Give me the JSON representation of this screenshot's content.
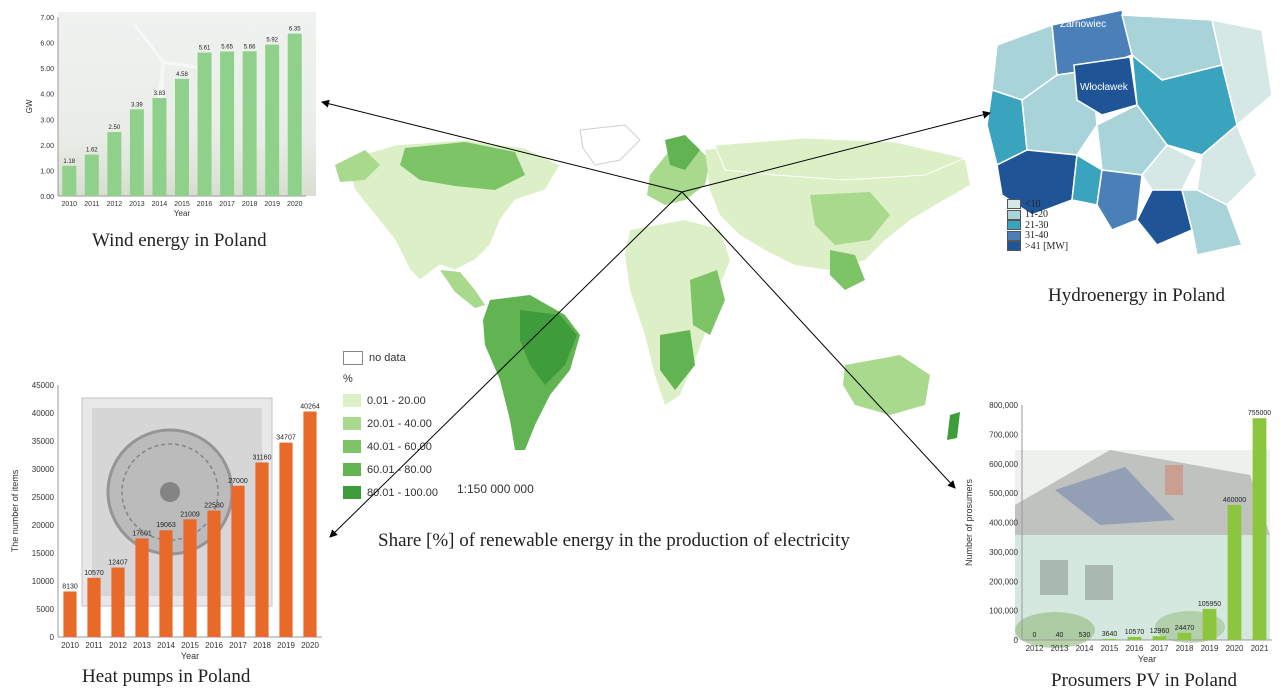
{
  "center": {
    "caption": "Share [%] of renewable energy in the production of electricity",
    "scale": "1:150 000 000",
    "legend": {
      "nodata": "no data",
      "unit": "%",
      "items": [
        {
          "label": "0.01 - 20.00",
          "color": "#dcefc7"
        },
        {
          "label": "20.01 - 40.00",
          "color": "#a9d98d"
        },
        {
          "label": "40.01 - 60.00",
          "color": "#7cc466"
        },
        {
          "label": "60.01 - 80.00",
          "color": "#62b351"
        },
        {
          "label": "80.01 - 100.00",
          "color": "#3e9c3a"
        }
      ]
    }
  },
  "wind": {
    "caption": "Wind energy in Poland",
    "chart_data": {
      "type": "bar",
      "categories": [
        "2010",
        "2011",
        "2012",
        "2013",
        "2014",
        "2015",
        "2016",
        "2017",
        "2018",
        "2019",
        "2020"
      ],
      "values": [
        1.18,
        1.62,
        2.5,
        3.39,
        3.83,
        4.58,
        5.61,
        5.65,
        5.66,
        5.92,
        6.35
      ],
      "value_labels": [
        "1.18",
        "1.62",
        "2.50",
        "3.39",
        "3.83",
        "4.58",
        "5.61",
        "5.65",
        "5.66",
        "5.92",
        "6.35"
      ],
      "xlabel": "Year",
      "ylabel": "GW",
      "ylim": [
        0,
        7
      ],
      "yticks": [
        "0.00",
        "1.00",
        "2.00",
        "3.00",
        "4.00",
        "5.00",
        "6.00",
        "7.00"
      ],
      "bar_color": "#8fd08a"
    }
  },
  "heat": {
    "caption": "Heat pumps in Poland",
    "chart_data": {
      "type": "bar",
      "categories": [
        "2010",
        "2011",
        "2012",
        "2013",
        "2014",
        "2015",
        "2016",
        "2017",
        "2018",
        "2019",
        "2020"
      ],
      "values": [
        8130,
        10570,
        12407,
        17601,
        19063,
        21009,
        22580,
        27000,
        31160,
        34707,
        40264
      ],
      "value_labels": [
        "8130",
        "10570",
        "12407",
        "17601",
        "19063",
        "21009",
        "22580",
        "27000",
        "31160",
        "34707",
        "40264"
      ],
      "xlabel": "Year",
      "ylabel": "The number of items",
      "ylim": [
        0,
        45000
      ],
      "yticks": [
        "0",
        "5000",
        "10000",
        "15000",
        "20000",
        "25000",
        "30000",
        "35000",
        "40000",
        "45000"
      ],
      "bar_color": "#e8692a"
    }
  },
  "pv": {
    "caption": "Prosumers PV in Poland",
    "chart_data": {
      "type": "bar",
      "categories": [
        "2012",
        "2013",
        "2014",
        "2015",
        "2016",
        "2017",
        "2018",
        "2019",
        "2020",
        "2021"
      ],
      "values": [
        0,
        40,
        530,
        3640,
        10570,
        12960,
        24470,
        105950,
        460000,
        755000
      ],
      "value_labels": [
        "0",
        "40",
        "530",
        "3640",
        "10570",
        "12960",
        "24470",
        "105950",
        "460000",
        "755000"
      ],
      "xlabel": "Year",
      "ylabel": "Number of prosumers",
      "ylim": [
        0,
        800000
      ],
      "yticks": [
        "0",
        "100,000",
        "200,000",
        "300,000",
        "400,000",
        "500,000",
        "600,000",
        "700,000",
        "800,000"
      ],
      "bar_color": "#8cc63f"
    }
  },
  "hydro": {
    "caption": "Hydroenergy in Poland",
    "labels": {
      "top": "Żarnowiec",
      "middle": "Włocławek"
    },
    "legend": [
      {
        "label": "<10",
        "color": "#d5e8e5"
      },
      {
        "label": "11-20",
        "color": "#a8d3d9"
      },
      {
        "label": "21-30",
        "color": "#3aa3bd"
      },
      {
        "label": "31-40",
        "color": "#4a7fb8"
      },
      {
        "label": ">41 [MW]",
        "color": "#1f5597"
      }
    ]
  }
}
